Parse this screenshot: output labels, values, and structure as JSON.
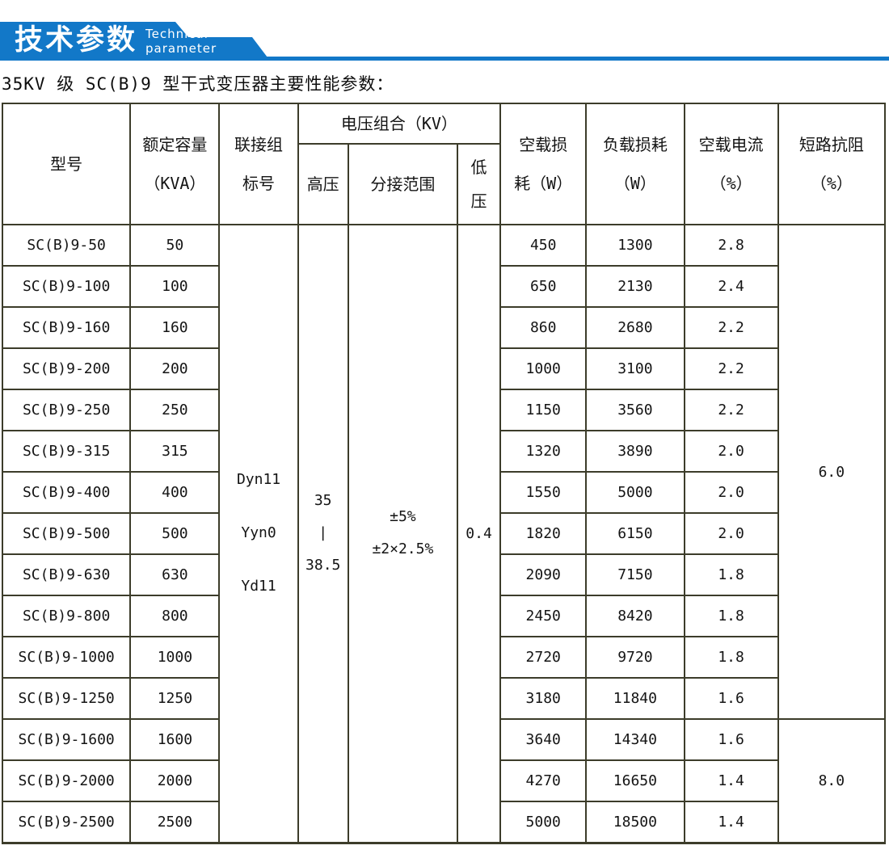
{
  "colors": {
    "banner_blue": "#1278c8",
    "table_border": "#3c3c2a",
    "text": "#141414"
  },
  "banner": {
    "title": "技术参数",
    "subtitle": "Technical parameter"
  },
  "page_title": "35KV 级 SC(B)9 型干式变压器主要性能参数：",
  "table": {
    "headers": {
      "model": "型号",
      "capacity": "额定容量\n（KVA）",
      "connection": "联接组\n标号",
      "voltage_group": "电压组合（KV）",
      "hv": "高压",
      "tap_range": "分接范围",
      "lv": "低\n压",
      "no_load_loss": "空载损\n耗（W）",
      "load_loss": "负载损耗\n（W）",
      "no_load_current": "空载电流\n（%）",
      "impedance": "短路抗阻\n（%）"
    },
    "merged": {
      "connection_values": [
        "Dyn11",
        "Yyn0",
        "Yd11"
      ],
      "hv_value": [
        "35",
        "|",
        "38.5"
      ],
      "tap_value": [
        "±5%",
        "±2×2.5%"
      ],
      "lv_value": "0.4",
      "impedance_groups": [
        {
          "value": "6.0",
          "rows": 12
        },
        {
          "value": "8.0",
          "rows": 3
        }
      ]
    },
    "rows": [
      {
        "model": "SC(B)9-50",
        "capacity": "50",
        "no_load_loss": "450",
        "load_loss": "1300",
        "no_load_current": "2.8"
      },
      {
        "model": "SC(B)9-100",
        "capacity": "100",
        "no_load_loss": "650",
        "load_loss": "2130",
        "no_load_current": "2.4"
      },
      {
        "model": "SC(B)9-160",
        "capacity": "160",
        "no_load_loss": "860",
        "load_loss": "2680",
        "no_load_current": "2.2"
      },
      {
        "model": "SC(B)9-200",
        "capacity": "200",
        "no_load_loss": "1000",
        "load_loss": "3100",
        "no_load_current": "2.2"
      },
      {
        "model": "SC(B)9-250",
        "capacity": "250",
        "no_load_loss": "1150",
        "load_loss": "3560",
        "no_load_current": "2.2"
      },
      {
        "model": "SC(B)9-315",
        "capacity": "315",
        "no_load_loss": "1320",
        "load_loss": "3890",
        "no_load_current": "2.0"
      },
      {
        "model": "SC(B)9-400",
        "capacity": "400",
        "no_load_loss": "1550",
        "load_loss": "5000",
        "no_load_current": "2.0"
      },
      {
        "model": "SC(B)9-500",
        "capacity": "500",
        "no_load_loss": "1820",
        "load_loss": "6150",
        "no_load_current": "2.0"
      },
      {
        "model": "SC(B)9-630",
        "capacity": "630",
        "no_load_loss": "2090",
        "load_loss": "7150",
        "no_load_current": "1.8"
      },
      {
        "model": "SC(B)9-800",
        "capacity": "800",
        "no_load_loss": "2450",
        "load_loss": "8420",
        "no_load_current": "1.8"
      },
      {
        "model": "SC(B)9-1000",
        "capacity": "1000",
        "no_load_loss": "2720",
        "load_loss": "9720",
        "no_load_current": "1.8"
      },
      {
        "model": "SC(B)9-1250",
        "capacity": "1250",
        "no_load_loss": "3180",
        "load_loss": "11840",
        "no_load_current": "1.6"
      },
      {
        "model": "SC(B)9-1600",
        "capacity": "1600",
        "no_load_loss": "3640",
        "load_loss": "14340",
        "no_load_current": "1.6"
      },
      {
        "model": "SC(B)9-2000",
        "capacity": "2000",
        "no_load_loss": "4270",
        "load_loss": "16650",
        "no_load_current": "1.4"
      },
      {
        "model": "SC(B)9-2500",
        "capacity": "2500",
        "no_load_loss": "5000",
        "load_loss": "18500",
        "no_load_current": "1.4"
      }
    ]
  }
}
